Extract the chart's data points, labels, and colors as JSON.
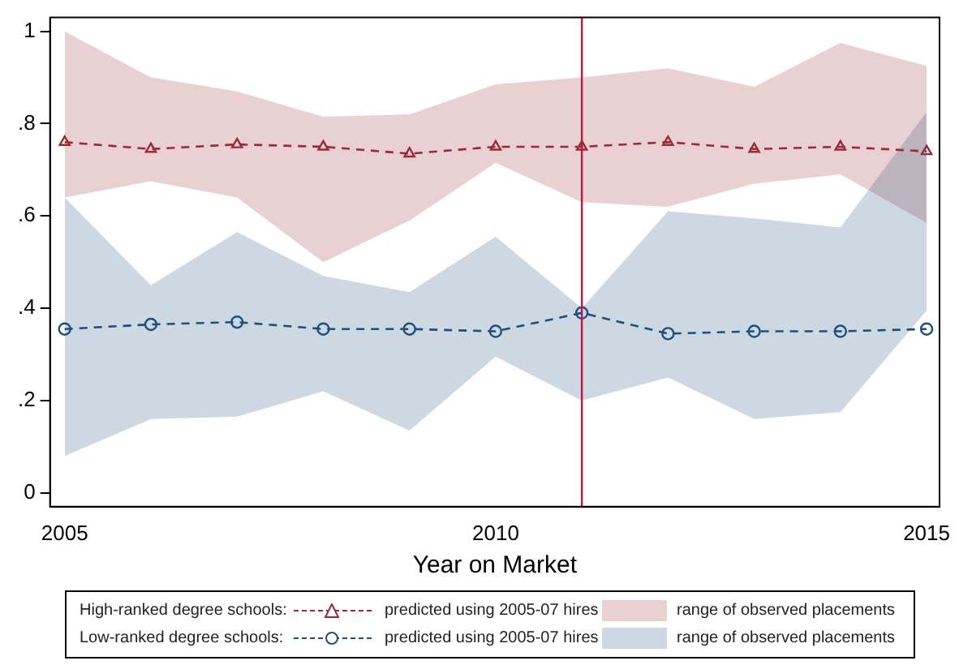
{
  "chart_data": {
    "type": "line",
    "xlabel": "Year on Market",
    "x": [
      2005,
      2006,
      2007,
      2008,
      2009,
      2010,
      2011,
      2012,
      2013,
      2014,
      2015
    ],
    "xlim": [
      2004.83,
      2015.15
    ],
    "xticks": [
      2005,
      2010,
      2015
    ],
    "ylim": [
      -0.03,
      1.03
    ],
    "yticks": [
      0,
      {
        "value": 0.2,
        "label": ".2"
      },
      {
        "value": 0.4,
        "label": ".4"
      },
      {
        "value": 0.6,
        "label": ".6"
      },
      {
        "value": 0.8,
        "label": ".8"
      },
      1
    ],
    "grid": false,
    "legend": "bottom",
    "line_style": "dashed",
    "annotations": [
      "High-ranked degree schools:",
      "Low-ranked degree schools:",
      "range of observed placements",
      "range of observed placements"
    ],
    "ref_lines": [
      {
        "axis": "x",
        "value": 2011,
        "color": "#c0163f"
      }
    ],
    "series": [
      {
        "name": "predicted using 2005-07 hires",
        "color": "#9b2a36",
        "marker": "triangle",
        "values": [
          0.76,
          0.745,
          0.755,
          0.75,
          0.735,
          0.75,
          0.75,
          0.76,
          0.745,
          0.75,
          0.74
        ],
        "lower": [
          0.64,
          0.675,
          0.64,
          0.5,
          0.59,
          0.715,
          0.63,
          0.62,
          0.67,
          0.69,
          0.585
        ],
        "upper": [
          1.0,
          0.9,
          0.87,
          0.815,
          0.82,
          0.885,
          0.9,
          0.92,
          0.88,
          0.975,
          0.925
        ]
      },
      {
        "name": "predicted using 2005-07 hires",
        "color": "#1f4e7a",
        "marker": "circle",
        "values": [
          0.355,
          0.365,
          0.37,
          0.355,
          0.355,
          0.35,
          0.39,
          0.345,
          0.35,
          0.35,
          0.355
        ],
        "lower": [
          0.08,
          0.16,
          0.165,
          0.22,
          0.135,
          0.295,
          0.2,
          0.25,
          0.16,
          0.175,
          0.395
        ],
        "upper": [
          0.64,
          0.45,
          0.565,
          0.47,
          0.435,
          0.555,
          0.4,
          0.61,
          0.595,
          0.575,
          0.825
        ]
      }
    ]
  }
}
